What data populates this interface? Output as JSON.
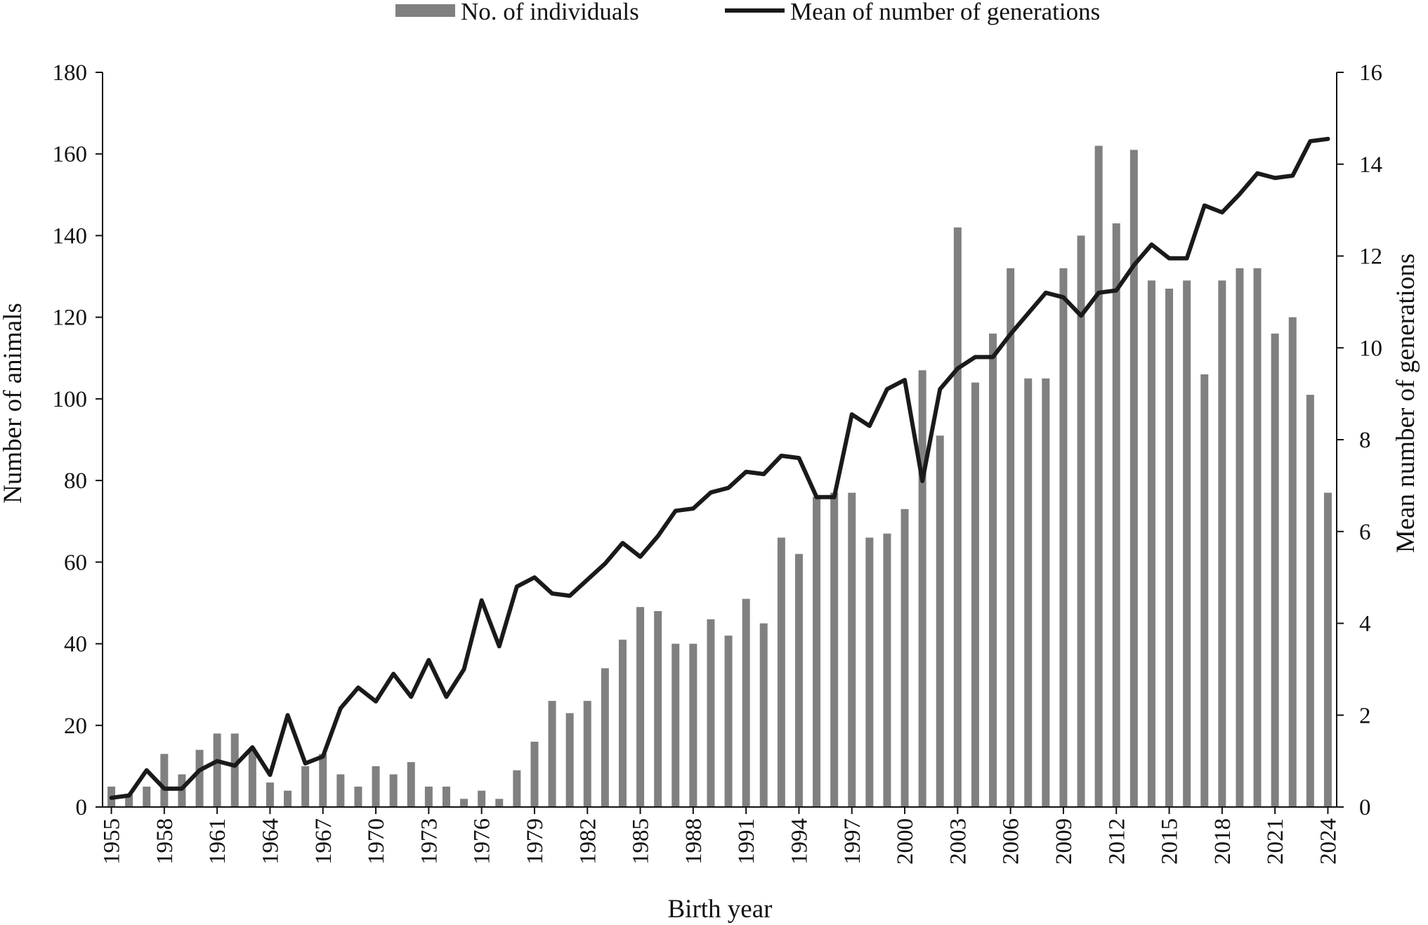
{
  "chart_data": {
    "type": "bar",
    "title": "",
    "xlabel": "Birth year",
    "ylabel": "Number of animals",
    "y2label": "Mean number of generations",
    "ylim": [
      0,
      180
    ],
    "y2lim": [
      0,
      16
    ],
    "yticks": [
      "0",
      "20",
      "40",
      "60",
      "80",
      "100",
      "120",
      "140",
      "160",
      "180"
    ],
    "y2ticks": [
      "0",
      "2",
      "4",
      "6",
      "8",
      "10",
      "12",
      "14",
      "16"
    ],
    "xtick_labels": [
      "1955",
      "1958",
      "1961",
      "1964",
      "1967",
      "1970",
      "1973",
      "1976",
      "1979",
      "1982",
      "1985",
      "1988",
      "1991",
      "1994",
      "1997",
      "2000",
      "2003",
      "2006",
      "2009",
      "2012",
      "2015",
      "2018",
      "2021",
      "2024"
    ],
    "grid": false,
    "legend_position": "top",
    "categories": [
      1955,
      1956,
      1957,
      1958,
      1959,
      1960,
      1961,
      1962,
      1963,
      1964,
      1965,
      1966,
      1967,
      1968,
      1969,
      1970,
      1971,
      1972,
      1973,
      1974,
      1975,
      1976,
      1977,
      1978,
      1979,
      1980,
      1981,
      1982,
      1983,
      1984,
      1985,
      1986,
      1987,
      1988,
      1989,
      1990,
      1991,
      1992,
      1993,
      1994,
      1995,
      1996,
      1997,
      1998,
      1999,
      2000,
      2001,
      2002,
      2003,
      2004,
      2005,
      2006,
      2007,
      2008,
      2009,
      2010,
      2011,
      2012,
      2013,
      2014,
      2015,
      2016,
      2017,
      2018,
      2019,
      2020,
      2021,
      2022,
      2023,
      2024
    ],
    "series": [
      {
        "name": "No. of individuals",
        "type": "bar",
        "axis": "left",
        "color": "#808080",
        "values": [
          5,
          3,
          5,
          13,
          8,
          14,
          18,
          18,
          14,
          6,
          4,
          10,
          13,
          8,
          5,
          10,
          8,
          11,
          5,
          5,
          2,
          4,
          2,
          9,
          16,
          26,
          23,
          26,
          34,
          41,
          49,
          48,
          40,
          40,
          46,
          42,
          51,
          45,
          66,
          62,
          76,
          77,
          77,
          66,
          67,
          73,
          107,
          91,
          142,
          104,
          116,
          132,
          105,
          105,
          132,
          140,
          162,
          143,
          161,
          129,
          127,
          129,
          106,
          129,
          132,
          132,
          116,
          120,
          101,
          77
        ]
      },
      {
        "name": "Mean of number of generations",
        "type": "line",
        "axis": "right",
        "color": "#1a1a1a",
        "values": [
          0.2,
          0.25,
          0.8,
          0.4,
          0.4,
          0.8,
          1.0,
          0.9,
          1.3,
          0.7,
          2.0,
          0.95,
          1.1,
          2.15,
          2.6,
          2.3,
          2.9,
          2.4,
          3.2,
          2.4,
          3.0,
          4.5,
          3.5,
          4.8,
          5.0,
          4.65,
          4.6,
          4.95,
          5.3,
          5.75,
          5.45,
          5.9,
          6.45,
          6.5,
          6.85,
          6.95,
          7.3,
          7.25,
          7.65,
          7.6,
          6.75,
          6.75,
          8.55,
          8.3,
          9.1,
          9.3,
          7.1,
          9.1,
          9.55,
          9.8,
          9.8,
          10.3,
          10.75,
          11.2,
          11.1,
          10.7,
          11.2,
          11.25,
          11.8,
          12.25,
          11.95,
          11.95,
          13.1,
          12.95,
          13.35,
          13.8,
          13.7,
          13.75,
          14.5,
          14.55
        ]
      }
    ]
  }
}
